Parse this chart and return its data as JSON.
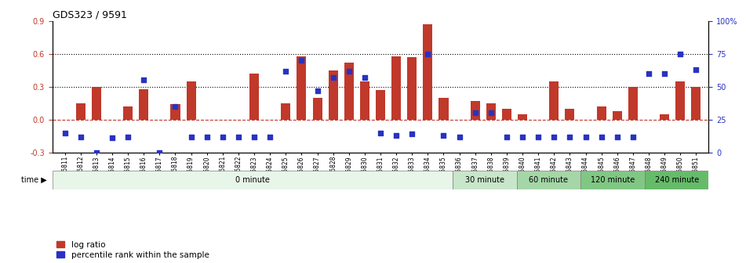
{
  "title": "GDS323 / 9591",
  "samples": [
    "GSM5811",
    "GSM5812",
    "GSM5813",
    "GSM5814",
    "GSM5815",
    "GSM5816",
    "GSM5817",
    "GSM5818",
    "GSM5819",
    "GSM5820",
    "GSM5821",
    "GSM5822",
    "GSM5823",
    "GSM5824",
    "GSM5825",
    "GSM5826",
    "GSM5827",
    "GSM5828",
    "GSM5829",
    "GSM5830",
    "GSM5831",
    "GSM5832",
    "GSM5833",
    "GSM5834",
    "GSM5835",
    "GSM5836",
    "GSM5837",
    "GSM5838",
    "GSM5839",
    "GSM5840",
    "GSM5841",
    "GSM5842",
    "GSM5843",
    "GSM5844",
    "GSM5845",
    "GSM5846",
    "GSM5847",
    "GSM5848",
    "GSM5849",
    "GSM5850",
    "GSM5851"
  ],
  "log_ratio": [
    0.0,
    0.15,
    0.3,
    0.0,
    0.12,
    0.28,
    0.0,
    0.14,
    0.35,
    0.0,
    0.0,
    0.0,
    0.42,
    0.0,
    0.15,
    0.58,
    0.2,
    0.45,
    0.52,
    0.35,
    0.27,
    0.58,
    0.57,
    0.87,
    0.2,
    0.0,
    0.17,
    0.15,
    0.1,
    0.05,
    0.0,
    0.35,
    0.1,
    0.0,
    0.12,
    0.08,
    0.3,
    0.0,
    0.05,
    0.35,
    0.3
  ],
  "percentile": [
    15,
    12,
    0,
    11,
    12,
    55,
    0,
    35,
    12,
    12,
    12,
    12,
    12,
    12,
    62,
    70,
    47,
    57,
    62,
    57,
    15,
    13,
    14,
    75,
    13,
    12,
    30,
    30,
    12,
    12,
    12,
    12,
    12,
    12,
    12,
    12,
    12,
    60,
    60,
    75,
    63
  ],
  "bar_color": "#c0392b",
  "dot_color": "#2832c2",
  "zero_line_color": "#c0392b",
  "grid_color": "#000000",
  "bg_color": "#ffffff",
  "ylim_left": [
    -0.3,
    0.9
  ],
  "ylim_right": [
    0,
    100
  ],
  "yticks_left": [
    -0.3,
    0.0,
    0.3,
    0.6,
    0.9
  ],
  "yticks_right": [
    0,
    25,
    50,
    75,
    100
  ],
  "time_groups": [
    {
      "label": "0 minute",
      "start": 0,
      "end": 25,
      "color": "#e8f5e9"
    },
    {
      "label": "30 minute",
      "start": 25,
      "end": 29,
      "color": "#c8e6c9"
    },
    {
      "label": "60 minute",
      "start": 29,
      "end": 33,
      "color": "#a5d6a7"
    },
    {
      "label": "120 minute",
      "start": 33,
      "end": 37,
      "color": "#81c784"
    },
    {
      "label": "240 minute",
      "start": 37,
      "end": 41,
      "color": "#66bb6a"
    }
  ]
}
